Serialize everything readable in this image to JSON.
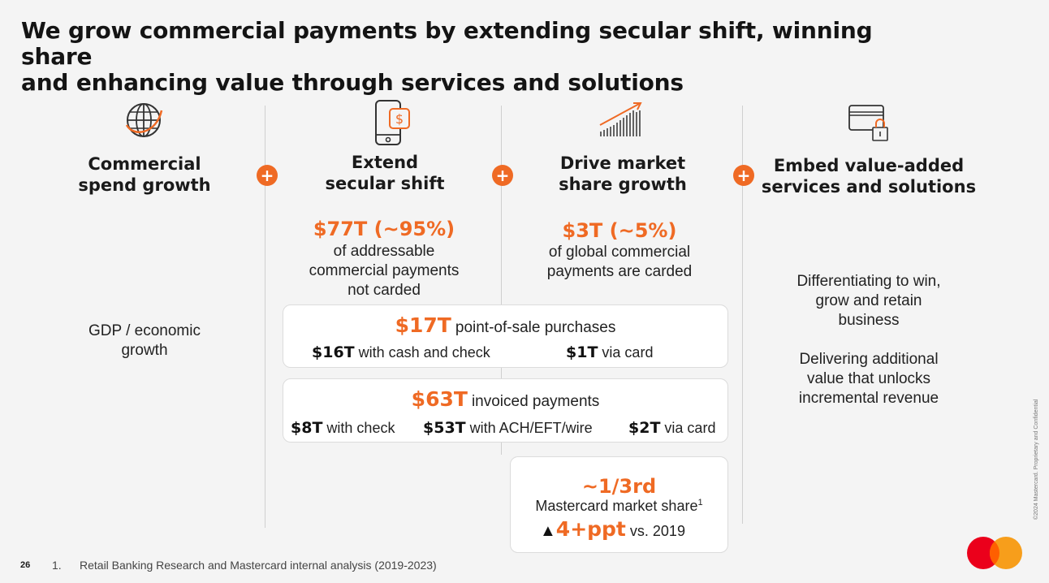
{
  "title": {
    "line1": "We grow commercial payments by extending secular shift, winning share",
    "line2": "and enhancing value through services and solutions"
  },
  "plus_symbol": "+",
  "columns": [
    {
      "icon": "globe-icon",
      "heading": [
        "Commercial",
        "spend growth"
      ],
      "body": [
        "GDP / economic",
        "growth"
      ]
    },
    {
      "icon": "mobile-payment-icon",
      "heading": [
        "Extend",
        "secular shift"
      ],
      "highlight": "$77T (~95%)",
      "body": [
        "of addressable",
        "commercial payments",
        "not carded"
      ]
    },
    {
      "icon": "growth-chart-icon",
      "heading": [
        "Drive market",
        "share growth"
      ],
      "highlight": "$3T (~5%)",
      "body": [
        "of global commercial",
        "payments are carded"
      ]
    },
    {
      "icon": "secure-card-icon",
      "heading": [
        "Embed value-added",
        "services and solutions"
      ],
      "body1": [
        "Differentiating to win,",
        "grow and retain",
        "business"
      ],
      "body2": [
        "Delivering additional",
        "value that unlocks",
        "incremental revenue"
      ]
    }
  ],
  "pos_card": {
    "amount": "$17T",
    "label": "point-of-sale purchases",
    "items": [
      {
        "amount": "$16T",
        "label": "with cash and check"
      },
      {
        "amount": "$1T",
        "label": "via card"
      }
    ]
  },
  "invoice_card": {
    "amount": "$63T",
    "label": "invoiced payments",
    "items": [
      {
        "amount": "$8T",
        "label": "with check"
      },
      {
        "amount": "$53T",
        "label": "with ACH/EFT/wire"
      },
      {
        "amount": "$2T",
        "label": "via card"
      }
    ]
  },
  "share_card": {
    "value": "~1/3rd",
    "label": "Mastercard market share",
    "footnote_ref": "1",
    "triangle": "▲",
    "delta": "4+ppt",
    "delta_label": "vs. 2019"
  },
  "footer": {
    "page_number": "26",
    "note_number": "1.",
    "note_text": "Retail Banking Research and Mastercard internal analysis (2019-2023)"
  },
  "copyright": "©2024 Mastercard. Proprietary and Confidential",
  "colors": {
    "accent": "#ef6a24",
    "logo_red": "#eb001b",
    "logo_yellow": "#f79e1b"
  }
}
